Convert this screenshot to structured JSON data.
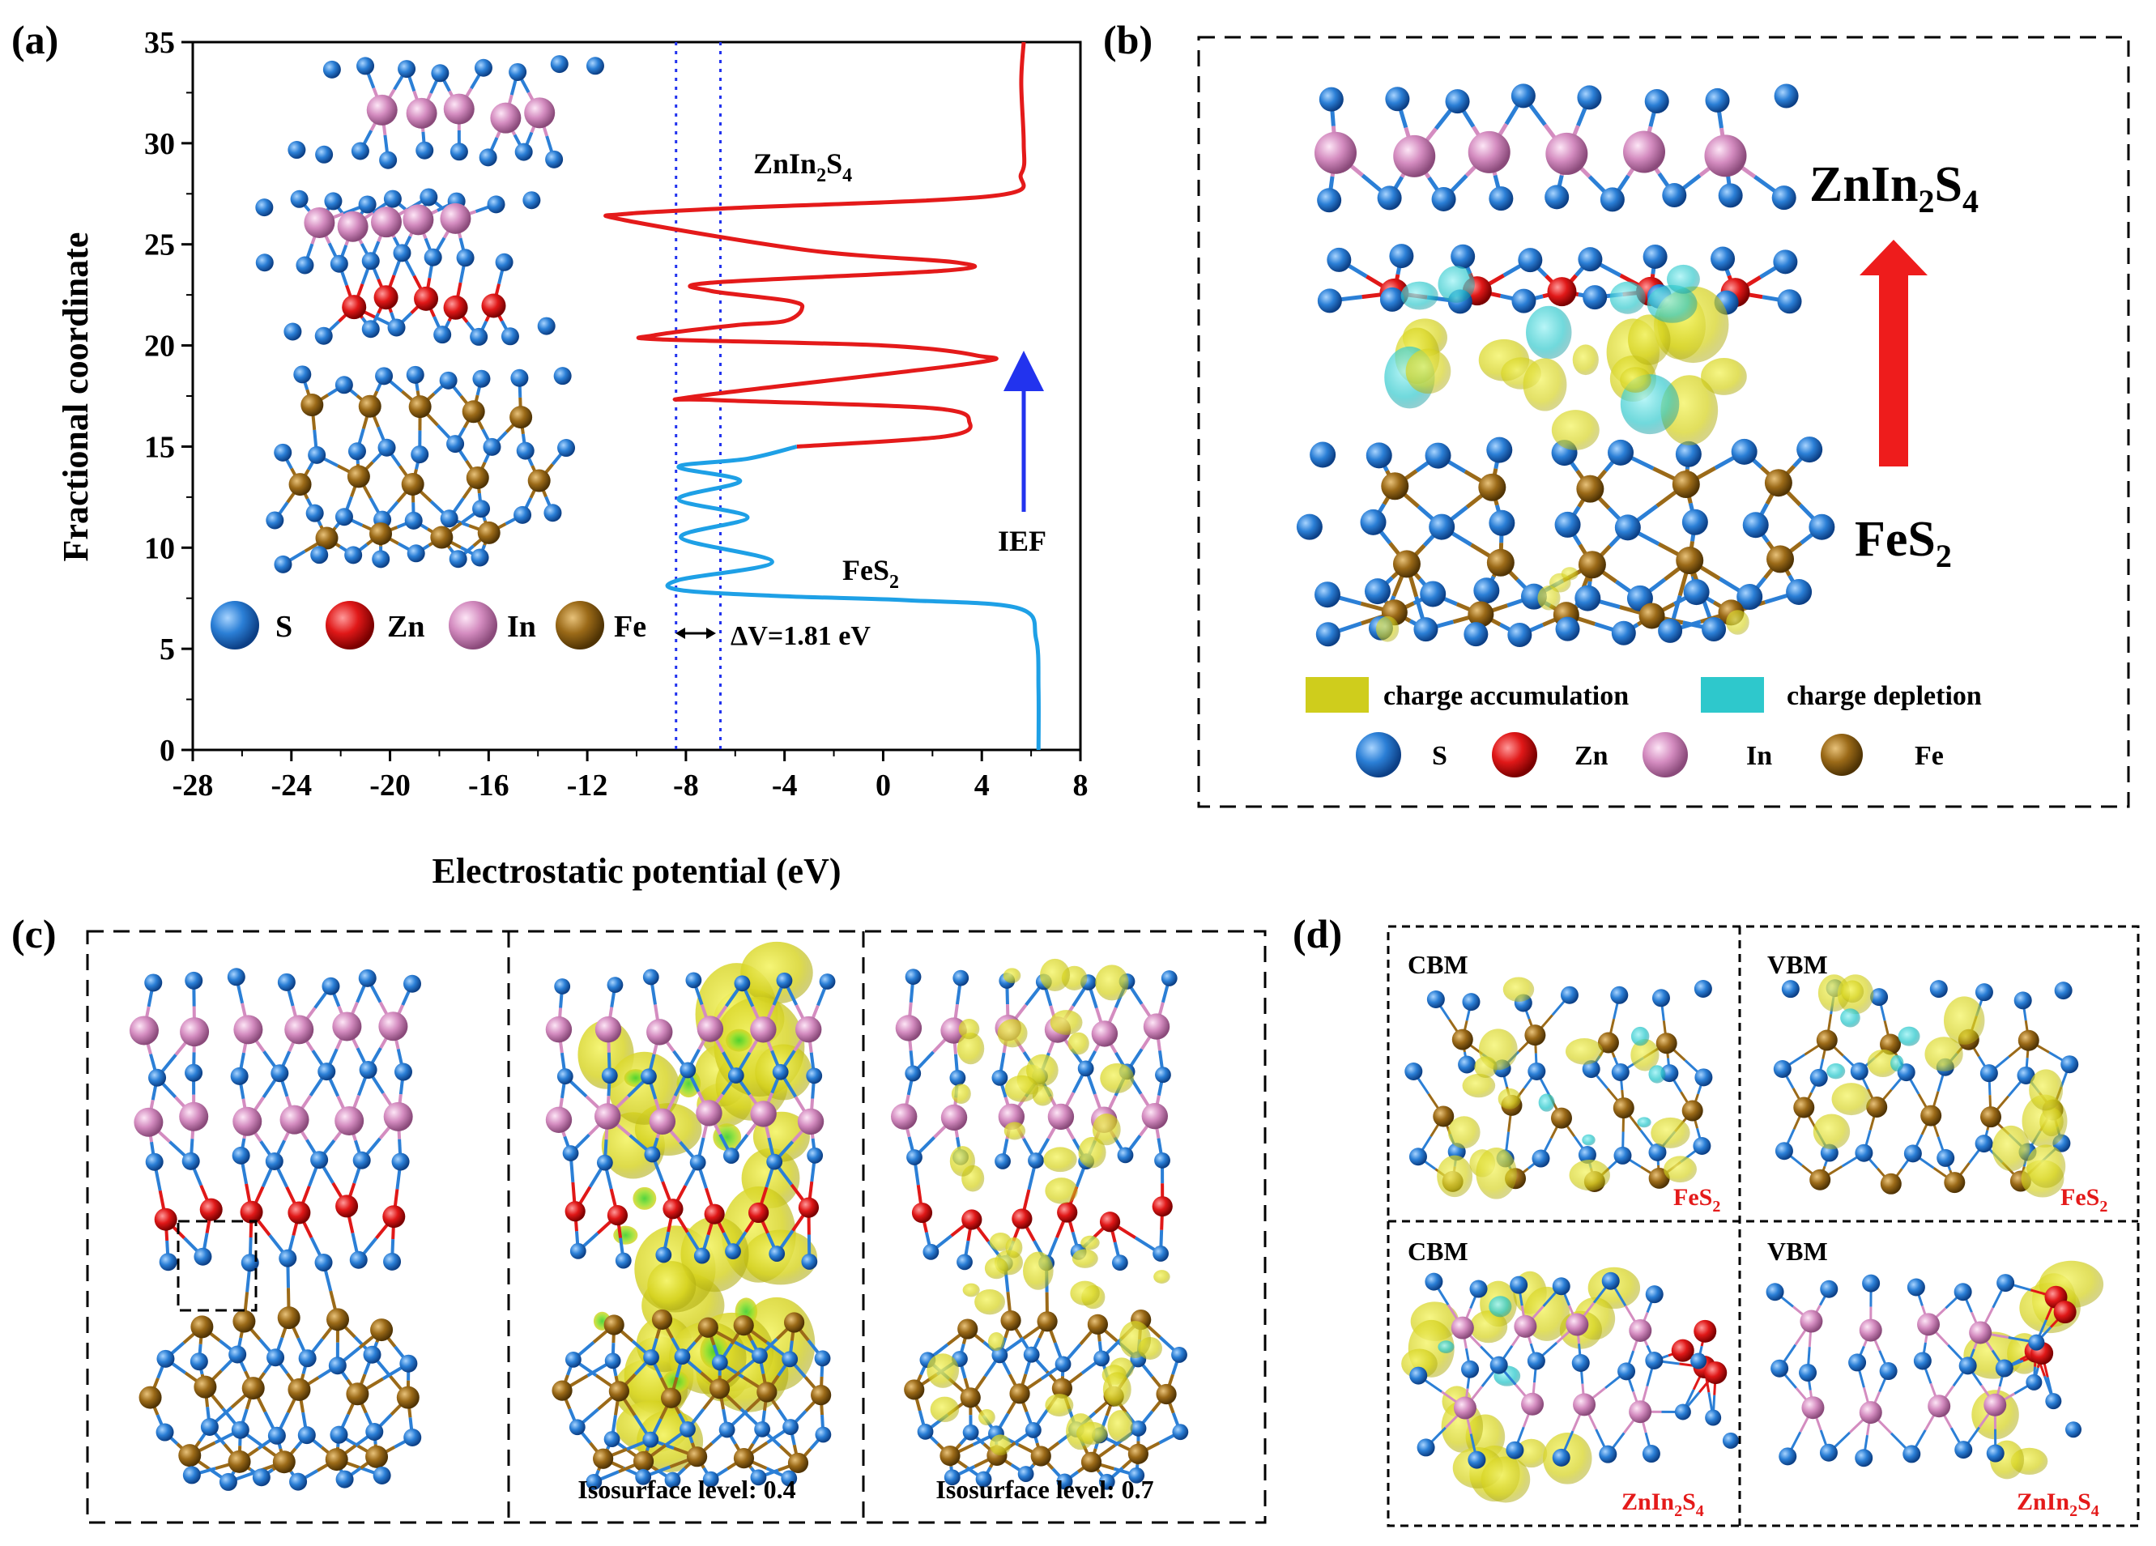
{
  "panel_labels": {
    "a": "(a)",
    "b": "(b)",
    "c": "(c)",
    "d": "(d)"
  },
  "legend": {
    "S": "S",
    "Zn": "Zn",
    "In": "In",
    "Fe": "Fe"
  },
  "colors": {
    "S": "#2b7fd6",
    "Zn": "#e01818",
    "In": "#d48cc0",
    "Fe": "#9b6a18",
    "potential_zis": "#e41a1a",
    "potential_fes2": "#1ea0e6",
    "dotted": "#2233ee",
    "ief_arrow": "#2233ee",
    "accumulation": "#d8d820",
    "depletion": "#2ec8cc"
  },
  "panel_a": {
    "ief_label": "IEF",
    "dv_label": "ΔV=1.81 eV",
    "zis_label": {
      "base": "ZnIn",
      "sub1": "2",
      "mid": "S",
      "sub2": "4"
    },
    "fes2_label": {
      "base": "FeS",
      "sub1": "2"
    },
    "chart_data": {
      "type": "line",
      "xlabel": "Electrostatic potential (eV)",
      "ylabel": "Fractional coordinate",
      "xlim": [
        -28,
        8
      ],
      "ylim": [
        0,
        35
      ],
      "xticks": [
        -28,
        -24,
        -20,
        -16,
        -12,
        -8,
        -4,
        0,
        4,
        8
      ],
      "yticks": [
        0,
        5,
        10,
        15,
        20,
        25,
        30,
        35
      ],
      "dotted_lines_x": [
        -8.4,
        -6.6
      ],
      "series": [
        {
          "name": "FeS2",
          "points": [
            [
              6.3,
              0
            ],
            [
              6.3,
              3
            ],
            [
              6.2,
              5.5
            ],
            [
              5.5,
              7.0
            ],
            [
              1,
              7.4
            ],
            [
              -4,
              7.6
            ],
            [
              -8.2,
              7.9
            ],
            [
              -8.3,
              8.4
            ],
            [
              -4.5,
              9.3
            ],
            [
              -8.2,
              10.5
            ],
            [
              -5.5,
              11.5
            ],
            [
              -8.3,
              12.4
            ],
            [
              -5.8,
              13.3
            ],
            [
              -8.3,
              14.0
            ],
            [
              -5.5,
              14.4
            ],
            [
              -3.5,
              15.0
            ]
          ]
        },
        {
          "name": "ZnIn2S4",
          "points": [
            [
              -3.5,
              15.0
            ],
            [
              2.5,
              15.5
            ],
            [
              3.5,
              16.2
            ],
            [
              2,
              16.9
            ],
            [
              -6.8,
              17.3
            ],
            [
              -7.5,
              17.5
            ],
            [
              3.5,
              19.1
            ],
            [
              3.8,
              19.5
            ],
            [
              0,
              20.0
            ],
            [
              -9.0,
              20.3
            ],
            [
              -9.3,
              20.5
            ],
            [
              -6,
              21.0
            ],
            [
              -4.0,
              21.2
            ],
            [
              -3.3,
              21.8
            ],
            [
              -3.8,
              22.2
            ],
            [
              -7,
              22.7
            ],
            [
              -7.0,
              23.1
            ],
            [
              2.5,
              23.7
            ],
            [
              3.0,
              24.1
            ],
            [
              -3,
              24.7
            ],
            [
              -10.5,
              26.2
            ],
            [
              -10.5,
              26.5
            ],
            [
              -6,
              26.8
            ],
            [
              4.5,
              27.4
            ],
            [
              5.6,
              28.5
            ],
            [
              5.7,
              30
            ],
            [
              5.6,
              33
            ],
            [
              5.7,
              35
            ]
          ]
        }
      ]
    }
  },
  "panel_b": {
    "zis_label": {
      "base": "ZnIn",
      "sub1": "2",
      "mid": "S",
      "sub2": "4"
    },
    "fes2_label": {
      "base": "FeS",
      "sub1": "2"
    },
    "accumulation_label": "charge accumulation",
    "depletion_label": "charge depletion"
  },
  "panel_c": {
    "iso1": "Isosurface level: 0.4",
    "iso2": "Isosurface level: 0.7"
  },
  "panel_d": {
    "cbm": "CBM",
    "vbm": "VBM",
    "fes2": {
      "base": "FeS",
      "sub1": "2"
    },
    "zis": {
      "base": "ZnIn",
      "sub1": "2",
      "mid": "S",
      "sub2": "4"
    }
  }
}
